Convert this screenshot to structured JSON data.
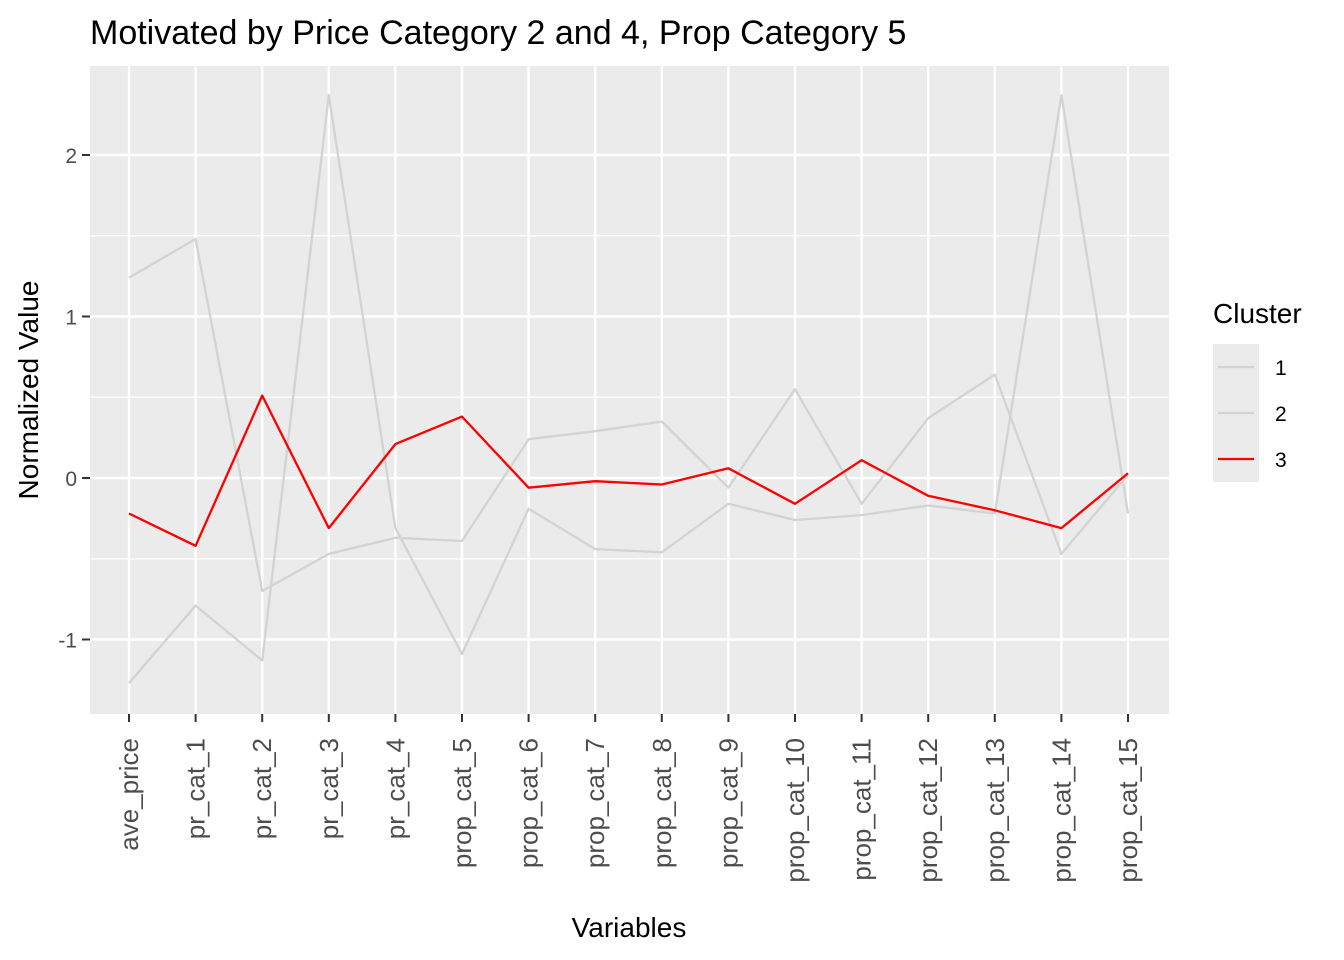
{
  "chart_data": {
    "type": "line",
    "title": "Motivated by Price Category 2 and 4, Prop Category 5",
    "xlabel": "Variables",
    "ylabel": "Normalized Value",
    "categories": [
      "ave_price",
      "pr_cat_1",
      "pr_cat_2",
      "pr_cat_3",
      "pr_cat_4",
      "prop_cat_5",
      "prop_cat_6",
      "prop_cat_7",
      "prop_cat_8",
      "prop_cat_9",
      "prop_cat_10",
      "prop_cat_11",
      "prop_cat_12",
      "prop_cat_13",
      "prop_cat_14",
      "prop_cat_15"
    ],
    "y_ticks": [
      -1,
      0,
      1,
      2
    ],
    "y_tick_labels": [
      "-1",
      "0",
      "1",
      "2"
    ],
    "ylim": [
      -1.46,
      2.5
    ],
    "grid": true,
    "legend": {
      "title": "Cluster",
      "position": "right"
    },
    "series": [
      {
        "name": "1",
        "color": "#d3d3d3",
        "values": [
          1.24,
          1.48,
          -0.7,
          -0.47,
          -0.37,
          -0.39,
          0.24,
          0.29,
          0.35,
          -0.06,
          0.55,
          -0.16,
          0.37,
          0.64,
          -0.47,
          0.02
        ]
      },
      {
        "name": "2",
        "color": "#d3d3d3",
        "values": [
          -1.27,
          -0.79,
          -1.13,
          2.37,
          -0.31,
          -1.09,
          -0.19,
          -0.44,
          -0.46,
          -0.16,
          -0.26,
          -0.23,
          -0.17,
          -0.22,
          2.37,
          -0.22
        ]
      },
      {
        "name": "3",
        "color": "#ff0000",
        "values": [
          -0.22,
          -0.42,
          0.51,
          -0.31,
          0.21,
          0.38,
          -0.06,
          -0.02,
          -0.04,
          0.06,
          -0.16,
          0.11,
          -0.11,
          -0.2,
          -0.31,
          0.03
        ]
      }
    ]
  }
}
